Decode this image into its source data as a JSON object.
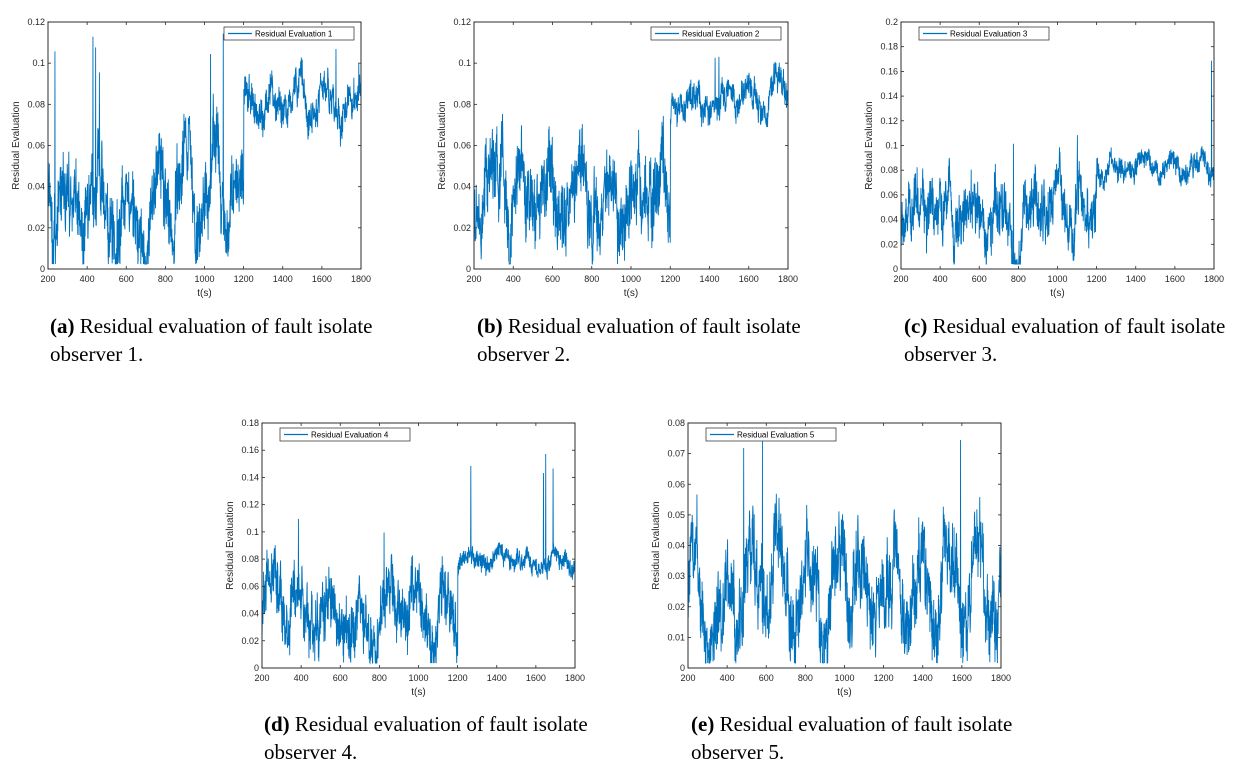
{
  "chart_data": [
    {
      "type": "line",
      "id": "a",
      "series": [
        {
          "name": "Residual Evaluation 1",
          "color": "#0072BD"
        }
      ],
      "xlabel": "t(s)",
      "ylabel": "Residual Evaluation",
      "xlim": [
        200,
        1800
      ],
      "ylim": [
        0,
        0.12
      ],
      "xticks": [
        200,
        400,
        600,
        800,
        1000,
        1200,
        1400,
        1600,
        1800
      ],
      "yticks": [
        0,
        0.02,
        0.04,
        0.06,
        0.08,
        0.1,
        0.12
      ],
      "ytick_labels": [
        "0",
        "0.02",
        "0.04",
        "0.06",
        "0.08",
        "0.1",
        "0.12"
      ],
      "legend": "top-right",
      "caption_label": "(a)",
      "caption_text": "Residual evaluation of fault isolate observer 1.",
      "segments": [
        {
          "x_start": 200,
          "x_end": 1200,
          "mean": 0.035,
          "amp": 0.025,
          "spike_max": 0.117
        },
        {
          "x_start": 1200,
          "x_end": 1800,
          "mean": 0.082,
          "amp": 0.012,
          "spike_max": 0.107
        }
      ]
    },
    {
      "type": "line",
      "id": "b",
      "series": [
        {
          "name": "Residual Evaluation 2",
          "color": "#0072BD"
        }
      ],
      "xlabel": "t(s)",
      "ylabel": "Residual Evaluation",
      "xlim": [
        200,
        1800
      ],
      "ylim": [
        0,
        0.12
      ],
      "xticks": [
        200,
        400,
        600,
        800,
        1000,
        1200,
        1400,
        1600,
        1800
      ],
      "yticks": [
        0,
        0.02,
        0.04,
        0.06,
        0.08,
        0.1,
        0.12
      ],
      "ytick_labels": [
        "0",
        "0.02",
        "0.04",
        "0.06",
        "0.08",
        "0.1",
        "0.12"
      ],
      "legend": "top-right",
      "caption_label": "(b)",
      "caption_text": "Residual evaluation of fault isolate observer 2.",
      "segments": [
        {
          "x_start": 200,
          "x_end": 1200,
          "mean": 0.035,
          "amp": 0.025,
          "spike_max": 0.116
        },
        {
          "x_start": 1200,
          "x_end": 1800,
          "mean": 0.082,
          "amp": 0.01,
          "spike_max": 0.107
        }
      ]
    },
    {
      "type": "line",
      "id": "c",
      "series": [
        {
          "name": "Residual Evaluation 3",
          "color": "#0072BD"
        }
      ],
      "xlabel": "t(s)",
      "ylabel": "Residual Evaluation",
      "xlim": [
        200,
        1800
      ],
      "ylim": [
        0,
        0.2
      ],
      "xticks": [
        200,
        400,
        600,
        800,
        1000,
        1200,
        1400,
        1600,
        1800
      ],
      "yticks": [
        0,
        0.02,
        0.04,
        0.06,
        0.08,
        0.1,
        0.12,
        0.14,
        0.16,
        0.18,
        0.2
      ],
      "ytick_labels": [
        "0",
        "0.02",
        "0.04",
        "0.06",
        "0.08",
        "0.1",
        "0.12",
        "0.14",
        "0.16",
        "0.18",
        "0.2"
      ],
      "legend": "top-left",
      "caption_label": "(c)",
      "caption_text": "Residual evaluation of fault isolate observer 3.",
      "segments": [
        {
          "x_start": 200,
          "x_end": 1200,
          "mean": 0.045,
          "amp": 0.03,
          "spike_max": 0.12
        },
        {
          "x_start": 1200,
          "x_end": 1800,
          "mean": 0.082,
          "amp": 0.012,
          "spike_max": 0.185
        }
      ]
    },
    {
      "type": "line",
      "id": "d",
      "series": [
        {
          "name": "Residual Evaluation 4",
          "color": "#0072BD"
        }
      ],
      "xlabel": "t(s)",
      "ylabel": "Residual Evaluation",
      "xlim": [
        200,
        1800
      ],
      "ylim": [
        0,
        0.18
      ],
      "xticks": [
        200,
        400,
        600,
        800,
        1000,
        1200,
        1400,
        1600,
        1800
      ],
      "yticks": [
        0,
        0.02,
        0.04,
        0.06,
        0.08,
        0.1,
        0.12,
        0.14,
        0.16,
        0.18
      ],
      "ytick_labels": [
        "0",
        "0.02",
        "0.04",
        "0.06",
        "0.08",
        "0.1",
        "0.12",
        "0.14",
        "0.16",
        "0.18"
      ],
      "legend": "top-left",
      "caption_label": "(d)",
      "caption_text": "Residual evaluation of fault isolate observer 4.",
      "segments": [
        {
          "x_start": 200,
          "x_end": 1200,
          "mean": 0.04,
          "amp": 0.03,
          "spike_max": 0.113
        },
        {
          "x_start": 1200,
          "x_end": 1800,
          "mean": 0.08,
          "amp": 0.01,
          "spike_max": 0.168
        }
      ]
    },
    {
      "type": "line",
      "id": "e",
      "series": [
        {
          "name": "Residual Evaluation 5",
          "color": "#0072BD"
        }
      ],
      "xlabel": "t(s)",
      "ylabel": "Residual Evaluation",
      "xlim": [
        200,
        1800
      ],
      "ylim": [
        0,
        0.08
      ],
      "xticks": [
        200,
        400,
        600,
        800,
        1000,
        1200,
        1400,
        1600,
        1800
      ],
      "yticks": [
        0,
        0.01,
        0.02,
        0.03,
        0.04,
        0.05,
        0.06,
        0.07,
        0.08
      ],
      "ytick_labels": [
        "0",
        "0.01",
        "0.02",
        "0.03",
        "0.04",
        "0.05",
        "0.06",
        "0.07",
        "0.08"
      ],
      "legend": "top-left",
      "caption_label": "(e)",
      "caption_text": "Residual evaluation of fault isolate observer 5.",
      "segments": [
        {
          "x_start": 200,
          "x_end": 1800,
          "mean": 0.025,
          "amp": 0.018,
          "spike_max": 0.075
        }
      ]
    }
  ]
}
